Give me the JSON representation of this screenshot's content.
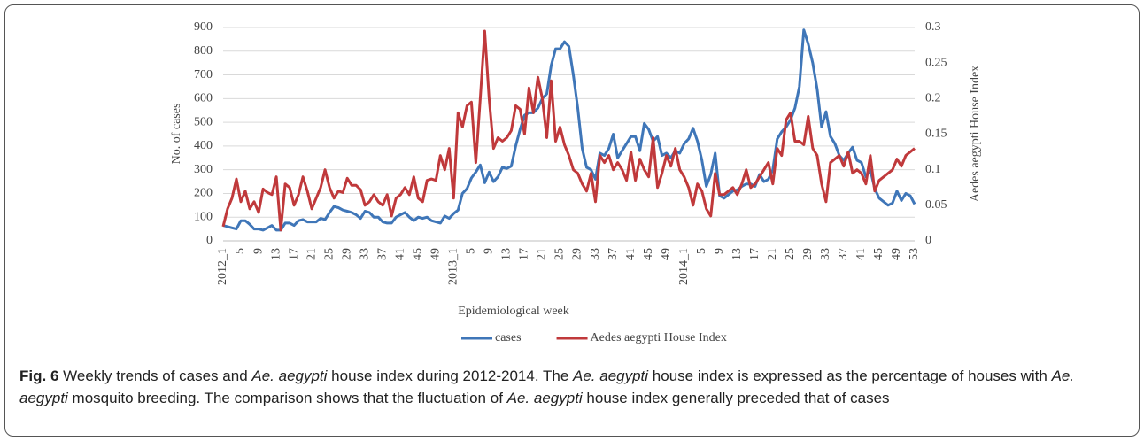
{
  "chart_data": {
    "type": "line",
    "x_label": "Epidemiological week",
    "y_label": "No. of cases",
    "y2_label": "Aedes aegypti House Index",
    "categories": [
      "2012_1",
      null,
      null,
      null,
      "5",
      null,
      null,
      null,
      "9",
      null,
      null,
      null,
      "13",
      null,
      null,
      null,
      "17",
      null,
      null,
      null,
      "21",
      null,
      null,
      null,
      "25",
      null,
      null,
      null,
      "29",
      null,
      null,
      null,
      "33",
      null,
      null,
      null,
      "37",
      null,
      null,
      null,
      "41",
      null,
      null,
      null,
      "45",
      null,
      null,
      null,
      "49",
      null,
      null,
      null,
      "2013_1",
      null,
      null,
      null,
      "5",
      null,
      null,
      null,
      "9",
      null,
      null,
      null,
      "13",
      null,
      null,
      null,
      "17",
      null,
      null,
      null,
      "21",
      null,
      null,
      null,
      "25",
      null,
      null,
      null,
      "29",
      null,
      null,
      null,
      "33",
      null,
      null,
      null,
      "37",
      null,
      null,
      null,
      "41",
      null,
      null,
      null,
      "45",
      null,
      null,
      null,
      "49",
      null,
      null,
      null,
      "2014_1",
      null,
      null,
      null,
      "5",
      null,
      null,
      null,
      "9",
      null,
      null,
      null,
      "13",
      null,
      null,
      null,
      "17",
      null,
      null,
      null,
      "21",
      null,
      null,
      null,
      "25",
      null,
      null,
      null,
      "29",
      null,
      null,
      null,
      "33",
      null,
      null,
      null,
      "37",
      null,
      null,
      null,
      "41",
      null,
      null,
      null,
      "45",
      null,
      null,
      null,
      "49",
      null,
      null,
      null,
      "53"
    ],
    "series": [
      {
        "name": "cases",
        "color": "#3f76b8",
        "values": [
          65,
          60,
          55,
          50,
          85,
          85,
          70,
          50,
          50,
          45,
          55,
          65,
          45,
          45,
          75,
          75,
          65,
          85,
          90,
          80,
          80,
          80,
          95,
          90,
          120,
          145,
          140,
          130,
          125,
          120,
          110,
          95,
          125,
          120,
          100,
          100,
          80,
          75,
          75,
          100,
          110,
          120,
          100,
          85,
          100,
          95,
          100,
          85,
          80,
          75,
          105,
          95,
          115,
          130,
          200,
          220,
          265,
          290,
          320,
          245,
          290,
          250,
          270,
          310,
          305,
          315,
          400,
          470,
          530,
          540,
          540,
          560,
          600,
          620,
          740,
          810,
          810,
          840,
          820,
          700,
          560,
          390,
          310,
          300,
          260,
          370,
          360,
          390,
          450,
          350,
          380,
          410,
          440,
          440,
          380,
          495,
          470,
          420,
          440,
          360,
          370,
          350,
          380,
          370,
          410,
          430,
          475,
          420,
          340,
          230,
          280,
          370,
          190,
          180,
          195,
          210,
          215,
          230,
          240,
          240,
          230,
          280,
          250,
          260,
          300,
          430,
          460,
          480,
          510,
          560,
          650,
          890,
          830,
          750,
          640,
          480,
          545,
          440,
          410,
          360,
          340,
          370,
          395,
          340,
          330,
          270,
          300,
          220,
          180,
          165,
          150,
          160,
          210,
          170,
          200,
          190,
          155
        ]
      },
      {
        "name": "Aedes aegypti House Index",
        "color": "#c0393b",
        "axis": "y2",
        "values": [
          0.02,
          0.045,
          0.06,
          0.087,
          0.055,
          0.07,
          0.045,
          0.055,
          0.04,
          0.073,
          0.068,
          0.065,
          0.09,
          0.015,
          0.08,
          0.075,
          0.05,
          0.065,
          0.09,
          0.07,
          0.045,
          0.06,
          0.075,
          0.1,
          0.075,
          0.06,
          0.07,
          0.068,
          0.088,
          0.078,
          0.078,
          0.072,
          0.05,
          0.055,
          0.065,
          0.055,
          0.05,
          0.065,
          0.035,
          0.06,
          0.065,
          0.075,
          0.065,
          0.09,
          0.06,
          0.055,
          0.085,
          0.087,
          0.085,
          0.12,
          0.1,
          0.13,
          0.06,
          0.18,
          0.16,
          0.19,
          0.195,
          0.11,
          0.2,
          0.295,
          0.2,
          0.13,
          0.145,
          0.14,
          0.145,
          0.155,
          0.19,
          0.185,
          0.15,
          0.215,
          0.18,
          0.23,
          0.2,
          0.145,
          0.225,
          0.14,
          0.16,
          0.135,
          0.12,
          0.1,
          0.095,
          0.08,
          0.07,
          0.095,
          0.055,
          0.12,
          0.11,
          0.12,
          0.1,
          0.11,
          0.1,
          0.085,
          0.125,
          0.085,
          0.115,
          0.1,
          0.09,
          0.145,
          0.075,
          0.095,
          0.12,
          0.105,
          0.13,
          0.1,
          0.09,
          0.075,
          0.05,
          0.08,
          0.07,
          0.045,
          0.035,
          0.095,
          0.065,
          0.065,
          0.07,
          0.075,
          0.065,
          0.08,
          0.1,
          0.075,
          0.08,
          0.09,
          0.1,
          0.11,
          0.08,
          0.13,
          0.12,
          0.17,
          0.18,
          0.14,
          0.14,
          0.135,
          0.175,
          0.13,
          0.12,
          0.08,
          0.055,
          0.11,
          0.115,
          0.12,
          0.105,
          0.125,
          0.095,
          0.1,
          0.095,
          0.08,
          0.12,
          0.07,
          0.085,
          0.09,
          0.095,
          0.1,
          0.115,
          0.105,
          0.12,
          0.125,
          0.13
        ]
      }
    ],
    "ylim": [
      0,
      900
    ],
    "yticks": [
      0,
      100,
      200,
      300,
      400,
      500,
      600,
      700,
      800,
      900
    ],
    "y2lim": [
      0,
      0.3
    ],
    "y2ticks": [
      0,
      0.05,
      0.1,
      0.15,
      0.2,
      0.25,
      0.3
    ],
    "grid": true,
    "legend": "bottom"
  },
  "caption": {
    "label": "Fig. 6",
    "parts": [
      {
        "text": " Weekly trends of cases and ",
        "italic": false
      },
      {
        "text": "Ae. aegypti",
        "italic": true
      },
      {
        "text": " house index during 2012-2014. The ",
        "italic": false
      },
      {
        "text": "Ae. aegypti",
        "italic": true
      },
      {
        "text": " house index is expressed as the percentage of houses with ",
        "italic": false
      },
      {
        "text": "Ae. aegypti",
        "italic": true
      },
      {
        "text": " mosquito breeding. The comparison shows that the fluctuation of ",
        "italic": false
      },
      {
        "text": "Ae. aegypti",
        "italic": true
      },
      {
        "text": " house index generally preceded that of cases",
        "italic": false
      }
    ]
  }
}
